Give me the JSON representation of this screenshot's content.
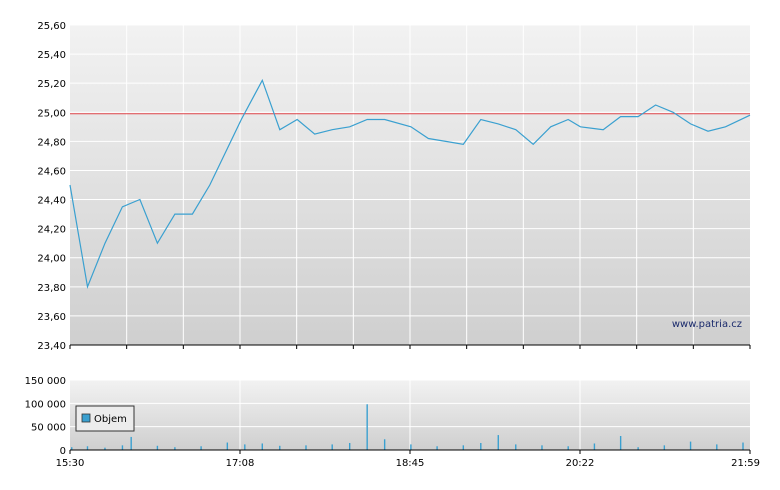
{
  "watermark": "www.patria.cz",
  "chart_data": [
    {
      "type": "line",
      "title": "",
      "xlabel": "",
      "ylabel": "",
      "ylim": [
        23.4,
        25.6
      ],
      "y_ticks": [
        "25,60",
        "25,40",
        "25,20",
        "25,00",
        "24,80",
        "24,60",
        "24,40",
        "24,20",
        "24,00",
        "23,80",
        "23,60",
        "23,40"
      ],
      "reference_line": 24.99,
      "grid": true,
      "line_color": "#3aa0d0",
      "reference_color": "#e0454a",
      "series": [
        {
          "x": [
            "15:30",
            "15:40",
            "15:50",
            "16:00",
            "16:10",
            "16:20",
            "16:30",
            "16:40",
            "16:50",
            "17:00",
            "17:08",
            "17:20",
            "17:30",
            "17:40",
            "17:50",
            "18:00",
            "18:10",
            "18:20",
            "18:30",
            "18:45",
            "18:55",
            "19:05",
            "19:15",
            "19:25",
            "19:35",
            "19:45",
            "19:55",
            "20:05",
            "20:15",
            "20:22",
            "20:35",
            "20:45",
            "20:55",
            "21:05",
            "21:15",
            "21:25",
            "21:35",
            "21:45",
            "21:59"
          ],
          "values": [
            24.5,
            23.8,
            24.1,
            24.35,
            24.4,
            24.1,
            24.3,
            24.3,
            24.5,
            24.75,
            24.95,
            25.22,
            24.88,
            24.95,
            24.85,
            24.88,
            24.9,
            24.95,
            24.95,
            24.9,
            24.82,
            24.8,
            24.78,
            24.95,
            24.92,
            24.88,
            24.78,
            24.9,
            24.95,
            24.9,
            24.88,
            24.97,
            24.97,
            25.05,
            25.0,
            24.92,
            24.87,
            24.9,
            24.98
          ]
        }
      ]
    },
    {
      "type": "bar",
      "title": "",
      "xlabel": "",
      "ylabel": "",
      "ylim": [
        0,
        150000
      ],
      "y_ticks": [
        "150 000",
        "100 000",
        "50 000",
        "0"
      ],
      "x_ticks": [
        "15:30",
        "17:08",
        "18:45",
        "20:22",
        "21:59"
      ],
      "legend": "Objem",
      "legend_position": "left",
      "bar_color": "#3aa0d0",
      "series": [
        {
          "name": "Objem",
          "x": [
            "15:31",
            "15:40",
            "15:50",
            "16:00",
            "16:05",
            "16:20",
            "16:30",
            "16:45",
            "17:00",
            "17:10",
            "17:20",
            "17:30",
            "17:45",
            "18:00",
            "18:10",
            "18:20",
            "18:30",
            "18:45",
            "19:00",
            "19:15",
            "19:25",
            "19:35",
            "19:45",
            "20:00",
            "20:15",
            "20:30",
            "20:45",
            "20:55",
            "21:10",
            "21:25",
            "21:40",
            "21:55"
          ],
          "values": [
            6000,
            8000,
            5000,
            10000,
            28000,
            9000,
            6000,
            8000,
            16000,
            12000,
            14000,
            9000,
            10000,
            12000,
            15000,
            98000,
            23000,
            12000,
            8000,
            10000,
            15000,
            32000,
            12000,
            10000,
            8000,
            14000,
            30000,
            6000,
            10000,
            18000,
            12000,
            16000
          ]
        }
      ]
    }
  ]
}
